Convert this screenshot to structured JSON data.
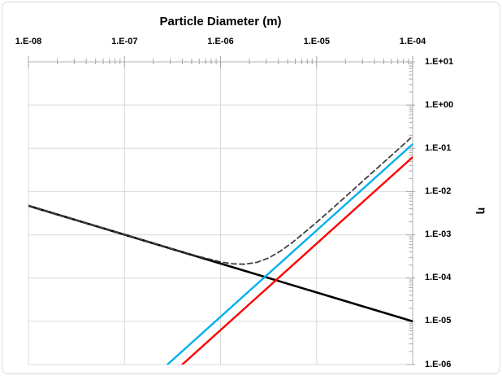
{
  "frame": {
    "border_color": "#d9d9d9",
    "background": "#ffffff"
  },
  "chart_data": {
    "type": "line",
    "title": "",
    "xlabel": "Particle Diameter (m)",
    "ylabel": "η",
    "x_scale": "log",
    "y_scale": "log",
    "xlim": [
      1e-08,
      0.0001
    ],
    "ylim": [
      1e-06,
      10
    ],
    "grid": true,
    "legend": "none",
    "x_tick_labels": [
      "1.E-08",
      "1.E-07",
      "1.E-06",
      "1.E-05",
      "1.E-04"
    ],
    "x_tick_values": [
      1e-08,
      1e-07,
      1e-06,
      1e-05,
      0.0001
    ],
    "y_tick_labels": [
      "1.E+01",
      "1.E+00",
      "1.E-01",
      "1.E-02",
      "1.E-03",
      "1.E-04",
      "1.E-05",
      "1.E-06"
    ],
    "y_tick_values": [
      10,
      1,
      0.1,
      0.01,
      0.001,
      0.0001,
      1e-05,
      1e-06
    ],
    "colors": {
      "gridline": "#d9d9d9",
      "axis_edge": "#bfbfbf",
      "tick": "#a6a6a6",
      "black_line": "#000000",
      "blue_line": "#00b0f0",
      "red_line": "#ff0000",
      "dashed_line": "#404040"
    },
    "series": [
      {
        "name": "black_line_descending",
        "color_key": "black_line",
        "style": "solid",
        "width": 2.6,
        "points": [
          [
            1e-08,
            0.0047
          ],
          [
            0.0001,
            1e-05
          ]
        ]
      },
      {
        "name": "blue_line_ascending",
        "color_key": "blue_line",
        "style": "solid",
        "width": 2.4,
        "points": [
          [
            2.8e-07,
            1e-06
          ],
          [
            0.0001,
            0.125
          ]
        ]
      },
      {
        "name": "red_line_ascending",
        "color_key": "red_line",
        "style": "solid",
        "width": 2.4,
        "points": [
          [
            4e-07,
            1e-06
          ],
          [
            0.0001,
            0.0625
          ]
        ]
      },
      {
        "name": "dashed_total_curve",
        "color_key": "dashed_line",
        "style": "dashed",
        "width": 1.8,
        "points": [
          [
            1e-08,
            0.0047
          ],
          [
            1.78e-08,
            0.0032
          ],
          [
            3.16e-08,
            0.00218
          ],
          [
            5.62e-08,
            0.00149
          ],
          [
            1e-07,
            0.00101
          ],
          [
            1.78e-07,
            0.000692
          ],
          [
            3.16e-07,
            0.000472
          ],
          [
            5.62e-07,
            0.000326
          ],
          [
            1e-06,
            0.000237
          ],
          [
            1.33e-06,
            0.000214
          ],
          [
            1.78e-06,
            0.000209
          ],
          [
            2.37e-06,
            0.00023
          ],
          [
            3.16e-06,
            0.000291
          ],
          [
            4.22e-06,
            0.000422
          ],
          [
            5.62e-06,
            0.000669
          ],
          [
            1e-05,
            0.00195
          ],
          [
            1.78e-05,
            0.00603
          ],
          [
            3.16e-05,
            0.019
          ],
          [
            5.62e-05,
            0.06
          ],
          [
            0.0001,
            0.19
          ]
        ]
      }
    ]
  }
}
